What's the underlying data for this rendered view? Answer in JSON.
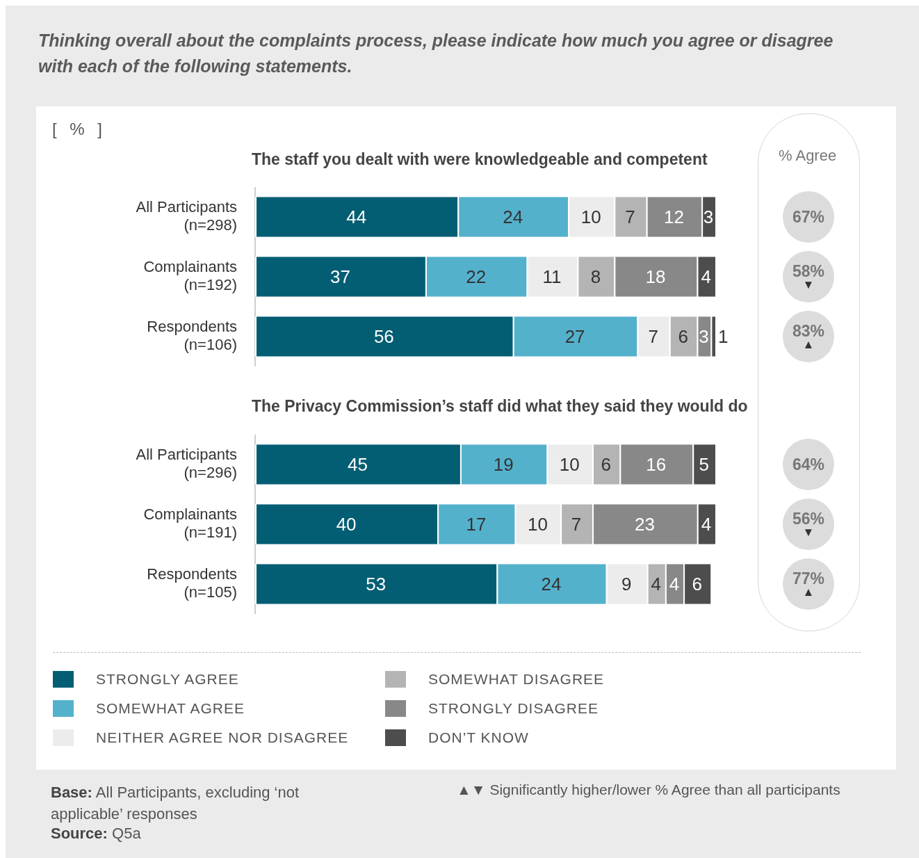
{
  "chart_data": [
    {
      "type": "bar",
      "orientation": "horizontal",
      "stacked": true,
      "data_labels": true,
      "tick_labels": "y",
      "title": "Thinking overall about the complaints process, please indicate how much you agree or disagree with each of the following statements.",
      "subtitle": "The staff you dealt with were knowledgeable and competent",
      "categories": [
        "All Participants\n(n=298)",
        "Complainants\n(n=192)",
        "Respondents\n(n=106)"
      ],
      "series": [
        {
          "color": "#045e73",
          "values": [
            44,
            37,
            56
          ]
        },
        {
          "color": "#54b1cc",
          "values": [
            24,
            22,
            27
          ]
        },
        {
          "color": "#ececec",
          "values": [
            10,
            11,
            7
          ]
        },
        {
          "color": "#b4b4b4",
          "values": [
            7,
            8,
            6
          ]
        },
        {
          "color": "#888888",
          "values": [
            12,
            18,
            3
          ]
        },
        {
          "color": "#4d4d4d",
          "values": [
            3,
            4,
            1
          ]
        }
      ],
      "annotations": [
        "[ % ]",
        "% Agree",
        "67%",
        "58%\n▼",
        "83%\n▲"
      ]
    },
    {
      "type": "bar",
      "orientation": "horizontal",
      "stacked": true,
      "data_labels": true,
      "tick_labels": "y",
      "legend": "bottom",
      "subtitle": "The Privacy Commission’s staff did what they said they would do",
      "categories": [
        "All Participants\n(n=296)",
        "Complainants\n(n=191)",
        "Respondents\n(n=105)"
      ],
      "series": [
        {
          "name": "STRONGLY AGREE",
          "color": "#045e73",
          "values": [
            45,
            40,
            53
          ]
        },
        {
          "name": "SOMEWHAT AGREE",
          "color": "#54b1cc",
          "values": [
            19,
            17,
            24
          ]
        },
        {
          "name": "NEITHER AGREE NOR DISAGREE",
          "color": "#ececec",
          "values": [
            10,
            10,
            9
          ]
        },
        {
          "name": "SOMEWHAT DISAGREE",
          "color": "#b4b4b4",
          "values": [
            6,
            7,
            4
          ]
        },
        {
          "name": "STRONGLY DISAGREE",
          "color": "#888888",
          "values": [
            16,
            23,
            4
          ]
        },
        {
          "name": "DON’T KNOW",
          "color": "#4d4d4d",
          "values": [
            5,
            4,
            6
          ]
        }
      ],
      "annotations": [
        "64%",
        "56%\n▼",
        "77%\n▲",
        "Base: All Participants, excluding ‘not applicable’ responses",
        "Source: Q5a",
        "▲▼ Significantly higher/lower % Agree than all participants"
      ]
    }
  ]
}
